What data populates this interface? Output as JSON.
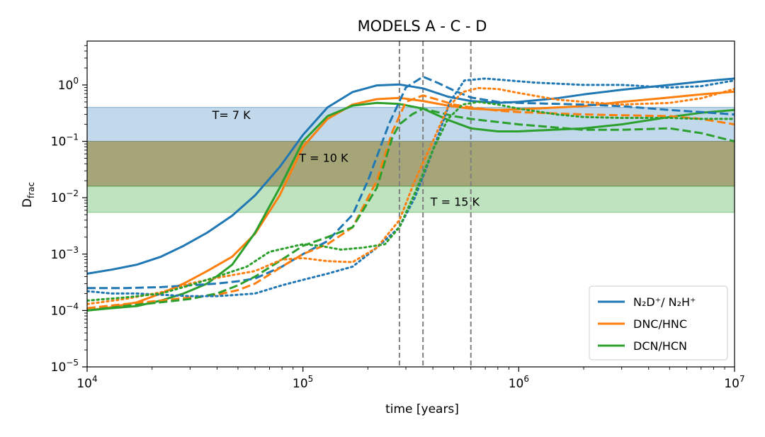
{
  "chart_data": {
    "type": "line",
    "title": "MODELS A - C - D",
    "xlabel": "time [years]",
    "ylabel": {
      "main": "D",
      "sub": "frac"
    },
    "xscale": "log",
    "yscale": "log",
    "xlim": [
      10000,
      10000000
    ],
    "ylim": [
      1e-05,
      6
    ],
    "grid": false,
    "legend_position": "bottom-right",
    "x_ticks": [
      {
        "value": 10000,
        "base": "10",
        "exp": "4"
      },
      {
        "value": 100000,
        "base": "10",
        "exp": "5"
      },
      {
        "value": 1000000,
        "base": "10",
        "exp": "6"
      },
      {
        "value": 10000000,
        "base": "10",
        "exp": "7"
      }
    ],
    "y_ticks": [
      {
        "value": 1e-05,
        "base": "10",
        "exp": "−5"
      },
      {
        "value": 0.0001,
        "base": "10",
        "exp": "−4"
      },
      {
        "value": 0.001,
        "base": "10",
        "exp": "−3"
      },
      {
        "value": 0.01,
        "base": "10",
        "exp": "−2"
      },
      {
        "value": 0.1,
        "base": "10",
        "exp": "−1"
      },
      {
        "value": 1,
        "base": "10",
        "exp": "0"
      }
    ],
    "bands": [
      {
        "y0": 0.1,
        "y1": 0.4,
        "color": "#1f77b4",
        "opacity": 0.28
      },
      {
        "y0": 0.016,
        "y1": 0.1,
        "color": "#7f7f3f",
        "opacity": 0.7
      },
      {
        "y0": 0.0055,
        "y1": 0.016,
        "color": "#2ca02c",
        "opacity": 0.3
      }
    ],
    "vlines": [
      280000,
      360000,
      600000
    ],
    "annotations": [
      {
        "text": "T= 7 K",
        "x": 38000,
        "y": 0.25
      },
      {
        "text": "T = 10 K",
        "x": 96000,
        "y": 0.043
      },
      {
        "text": "T = 15 K",
        "x": 390000,
        "y": 0.0072
      }
    ],
    "legend": [
      {
        "label": "N₂D⁺/ N₂H⁺",
        "color": "#1f77b4"
      },
      {
        "label": "DNC/HNC",
        "color": "#ff7f0e"
      },
      {
        "label": "DCN/HCN",
        "color": "#2ca02c"
      }
    ],
    "series": [
      {
        "name": "N₂D⁺/ N₂H⁺",
        "color": "#1f77b4",
        "style": "solid",
        "points": [
          [
            10000,
            0.00045
          ],
          [
            13000,
            0.00053
          ],
          [
            17000,
            0.00065
          ],
          [
            22000,
            0.0009
          ],
          [
            28000,
            0.0014
          ],
          [
            36000,
            0.0024
          ],
          [
            47000,
            0.0048
          ],
          [
            60000,
            0.011
          ],
          [
            78000,
            0.035
          ],
          [
            100000,
            0.13
          ],
          [
            130000,
            0.4
          ],
          [
            170000,
            0.75
          ],
          [
            220000,
            0.98
          ],
          [
            280000,
            1.02
          ],
          [
            360000,
            0.87
          ],
          [
            470000,
            0.62
          ],
          [
            600000,
            0.52
          ],
          [
            800000,
            0.48
          ],
          [
            1000000,
            0.5
          ],
          [
            1500000,
            0.58
          ],
          [
            2000000,
            0.68
          ],
          [
            3000000,
            0.82
          ],
          [
            5000000,
            1.0
          ],
          [
            7000000,
            1.15
          ],
          [
            10000000,
            1.3
          ]
        ]
      },
      {
        "name": "DNC/HNC",
        "color": "#ff7f0e",
        "style": "solid",
        "points": [
          [
            10000,
            0.0001
          ],
          [
            13000,
            0.000115
          ],
          [
            17000,
            0.00014
          ],
          [
            22000,
            0.0002
          ],
          [
            28000,
            0.0003
          ],
          [
            36000,
            0.0005
          ],
          [
            47000,
            0.0009
          ],
          [
            60000,
            0.0023
          ],
          [
            78000,
            0.011
          ],
          [
            100000,
            0.08
          ],
          [
            130000,
            0.25
          ],
          [
            170000,
            0.45
          ],
          [
            220000,
            0.56
          ],
          [
            280000,
            0.59
          ],
          [
            360000,
            0.52
          ],
          [
            470000,
            0.43
          ],
          [
            600000,
            0.38
          ],
          [
            800000,
            0.36
          ],
          [
            1000000,
            0.37
          ],
          [
            2000000,
            0.42
          ],
          [
            3000000,
            0.5
          ],
          [
            5000000,
            0.6
          ],
          [
            7000000,
            0.68
          ],
          [
            10000000,
            0.76
          ]
        ]
      },
      {
        "name": "DCN/HCN",
        "color": "#2ca02c",
        "style": "solid",
        "points": [
          [
            10000,
            0.0001
          ],
          [
            13000,
            0.00011
          ],
          [
            17000,
            0.00012
          ],
          [
            22000,
            0.00015
          ],
          [
            28000,
            0.0002
          ],
          [
            36000,
            0.0003
          ],
          [
            47000,
            0.00065
          ],
          [
            60000,
            0.0024
          ],
          [
            78000,
            0.015
          ],
          [
            100000,
            0.1
          ],
          [
            130000,
            0.28
          ],
          [
            170000,
            0.43
          ],
          [
            220000,
            0.48
          ],
          [
            280000,
            0.46
          ],
          [
            360000,
            0.38
          ],
          [
            470000,
            0.24
          ],
          [
            600000,
            0.17
          ],
          [
            800000,
            0.15
          ],
          [
            1000000,
            0.15
          ],
          [
            2000000,
            0.17
          ],
          [
            3000000,
            0.2
          ],
          [
            5000000,
            0.27
          ],
          [
            7000000,
            0.32
          ],
          [
            10000000,
            0.36
          ]
        ]
      },
      {
        "name": "N₂D⁺/ N₂H⁺",
        "color": "#1f77b4",
        "style": "dashed",
        "points": [
          [
            10000,
            0.00025
          ],
          [
            15000,
            0.00025
          ],
          [
            22000,
            0.00026
          ],
          [
            30000,
            0.00028
          ],
          [
            40000,
            0.0003
          ],
          [
            50000,
            0.00033
          ],
          [
            60000,
            0.00037
          ],
          [
            80000,
            0.0006
          ],
          [
            100000,
            0.001
          ],
          [
            130000,
            0.0017
          ],
          [
            170000,
            0.005
          ],
          [
            200000,
            0.02
          ],
          [
            250000,
            0.2
          ],
          [
            300000,
            0.9
          ],
          [
            360000,
            1.4
          ],
          [
            420000,
            1.1
          ],
          [
            500000,
            0.8
          ],
          [
            600000,
            0.6
          ],
          [
            800000,
            0.5
          ],
          [
            1000000,
            0.48
          ],
          [
            2000000,
            0.45
          ],
          [
            3000000,
            0.42
          ],
          [
            5000000,
            0.36
          ],
          [
            7000000,
            0.33
          ],
          [
            10000000,
            0.3
          ]
        ]
      },
      {
        "name": "DNC/HNC",
        "color": "#ff7f0e",
        "style": "dashed",
        "points": [
          [
            10000,
            0.00011
          ],
          [
            15000,
            0.00013
          ],
          [
            22000,
            0.00015
          ],
          [
            30000,
            0.00017
          ],
          [
            40000,
            0.00019
          ],
          [
            50000,
            0.00023
          ],
          [
            60000,
            0.0003
          ],
          [
            80000,
            0.0006
          ],
          [
            100000,
            0.001
          ],
          [
            130000,
            0.0015
          ],
          [
            170000,
            0.003
          ],
          [
            220000,
            0.02
          ],
          [
            260000,
            0.15
          ],
          [
            300000,
            0.5
          ],
          [
            360000,
            0.65
          ],
          [
            420000,
            0.55
          ],
          [
            500000,
            0.45
          ],
          [
            600000,
            0.4
          ],
          [
            800000,
            0.35
          ],
          [
            1000000,
            0.33
          ],
          [
            2000000,
            0.3
          ],
          [
            3000000,
            0.29
          ],
          [
            5000000,
            0.28
          ],
          [
            7000000,
            0.25
          ],
          [
            10000000,
            0.2
          ]
        ]
      },
      {
        "name": "DCN/HCN",
        "color": "#2ca02c",
        "style": "dashed",
        "points": [
          [
            10000,
            0.0001
          ],
          [
            15000,
            0.00012
          ],
          [
            22000,
            0.00014
          ],
          [
            30000,
            0.00016
          ],
          [
            40000,
            0.0002
          ],
          [
            50000,
            0.00028
          ],
          [
            60000,
            0.0004
          ],
          [
            80000,
            0.0008
          ],
          [
            100000,
            0.0014
          ],
          [
            130000,
            0.002
          ],
          [
            170000,
            0.003
          ],
          [
            220000,
            0.015
          ],
          [
            260000,
            0.12
          ],
          [
            280000,
            0.2
          ],
          [
            320000,
            0.3
          ],
          [
            360000,
            0.38
          ],
          [
            420000,
            0.33
          ],
          [
            500000,
            0.28
          ],
          [
            600000,
            0.25
          ],
          [
            800000,
            0.22
          ],
          [
            1000000,
            0.2
          ],
          [
            2000000,
            0.16
          ],
          [
            3000000,
            0.16
          ],
          [
            5000000,
            0.17
          ],
          [
            7000000,
            0.14
          ],
          [
            10000000,
            0.1
          ]
        ]
      },
      {
        "name": "N₂D⁺/ N₂H⁺",
        "color": "#1f77b4",
        "style": "dotted",
        "points": [
          [
            10000,
            0.00022
          ],
          [
            13000,
            0.0002
          ],
          [
            17000,
            0.0002
          ],
          [
            22000,
            0.00019
          ],
          [
            30000,
            0.00018
          ],
          [
            40000,
            0.00018
          ],
          [
            50000,
            0.00019
          ],
          [
            60000,
            0.0002
          ],
          [
            80000,
            0.00028
          ],
          [
            100000,
            0.00035
          ],
          [
            130000,
            0.00045
          ],
          [
            170000,
            0.0006
          ],
          [
            220000,
            0.0013
          ],
          [
            280000,
            0.003
          ],
          [
            330000,
            0.01
          ],
          [
            380000,
            0.04
          ],
          [
            430000,
            0.15
          ],
          [
            480000,
            0.5
          ],
          [
            560000,
            1.2
          ],
          [
            700000,
            1.3
          ],
          [
            900000,
            1.2
          ],
          [
            1200000,
            1.1
          ],
          [
            2000000,
            1.0
          ],
          [
            3000000,
            1.0
          ],
          [
            5000000,
            0.9
          ],
          [
            7000000,
            0.95
          ],
          [
            10000000,
            1.2
          ]
        ]
      },
      {
        "name": "DNC/HNC",
        "color": "#ff7f0e",
        "style": "dotted",
        "points": [
          [
            10000,
            0.00013
          ],
          [
            15000,
            0.00016
          ],
          [
            22000,
            0.00021
          ],
          [
            30000,
            0.0003
          ],
          [
            40000,
            0.00038
          ],
          [
            60000,
            0.0005
          ],
          [
            80000,
            0.0008
          ],
          [
            100000,
            0.00085
          ],
          [
            130000,
            0.00075
          ],
          [
            170000,
            0.00072
          ],
          [
            220000,
            0.0013
          ],
          [
            280000,
            0.004
          ],
          [
            330000,
            0.02
          ],
          [
            400000,
            0.1
          ],
          [
            470000,
            0.4
          ],
          [
            550000,
            0.75
          ],
          [
            650000,
            0.88
          ],
          [
            800000,
            0.85
          ],
          [
            1000000,
            0.72
          ],
          [
            1500000,
            0.55
          ],
          [
            2000000,
            0.5
          ],
          [
            3000000,
            0.45
          ],
          [
            5000000,
            0.48
          ],
          [
            7000000,
            0.58
          ],
          [
            10000000,
            0.85
          ]
        ]
      },
      {
        "name": "DCN/HCN",
        "color": "#2ca02c",
        "style": "dotted",
        "points": [
          [
            10000,
            0.00015
          ],
          [
            15000,
            0.00017
          ],
          [
            22000,
            0.0002
          ],
          [
            30000,
            0.00028
          ],
          [
            40000,
            0.0004
          ],
          [
            55000,
            0.0006
          ],
          [
            70000,
            0.0011
          ],
          [
            85000,
            0.0013
          ],
          [
            100000,
            0.0015
          ],
          [
            120000,
            0.0014
          ],
          [
            150000,
            0.0012
          ],
          [
            190000,
            0.0013
          ],
          [
            240000,
            0.0015
          ],
          [
            280000,
            0.003
          ],
          [
            330000,
            0.012
          ],
          [
            400000,
            0.07
          ],
          [
            470000,
            0.25
          ],
          [
            550000,
            0.45
          ],
          [
            650000,
            0.5
          ],
          [
            800000,
            0.45
          ],
          [
            1000000,
            0.38
          ],
          [
            1500000,
            0.3
          ],
          [
            2000000,
            0.27
          ],
          [
            3000000,
            0.26
          ],
          [
            5000000,
            0.26
          ],
          [
            7000000,
            0.25
          ],
          [
            10000000,
            0.25
          ]
        ]
      }
    ]
  }
}
